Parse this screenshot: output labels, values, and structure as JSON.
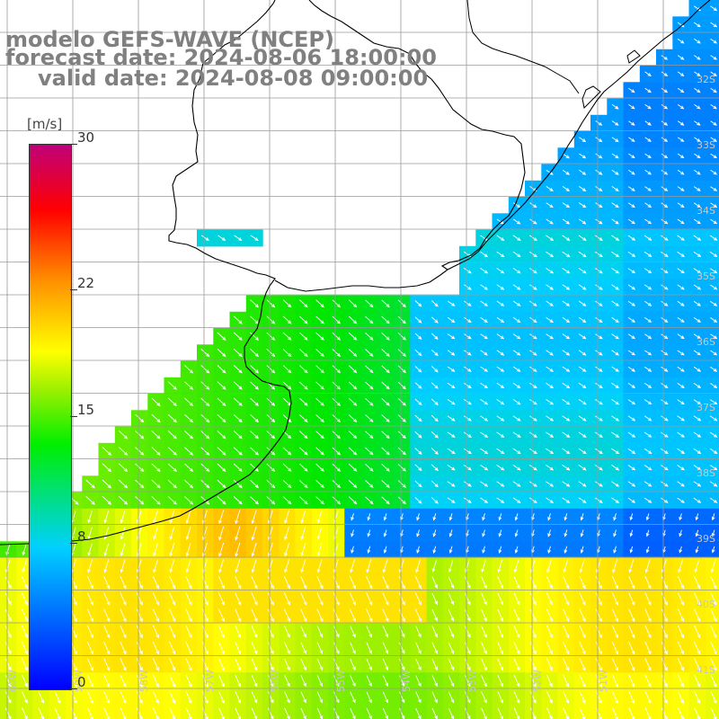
{
  "title": {
    "line1": "modelo GEFS-WAVE (NCEP)",
    "line2": "forecast date: 2024-08-06 18:00:00",
    "line3": "valid date: 2024-08-08 09:00:00"
  },
  "colorbar": {
    "units": "[m/s]",
    "ticks": [
      {
        "label": "30",
        "value": 30
      },
      {
        "label": "22",
        "value": 22
      },
      {
        "label": "15",
        "value": 15
      },
      {
        "label": "8",
        "value": 8
      },
      {
        "label": "0",
        "value": 0
      }
    ],
    "min": 0,
    "max": 30
  },
  "grid": {
    "lon_labels": [
      "60W",
      "59W",
      "58W",
      "57W",
      "56W",
      "55W",
      "54W",
      "53W",
      "52W",
      "51W"
    ],
    "lat_labels": [
      "32S",
      "33S",
      "34S",
      "35S",
      "36S",
      "37S",
      "38S",
      "39S",
      "40S",
      "41S"
    ]
  },
  "colors": {
    "land": "#ffffff",
    "coast": "#000000",
    "grid": "#9a9a9a",
    "arrow": "#ffffff",
    "title": "#808080"
  }
}
